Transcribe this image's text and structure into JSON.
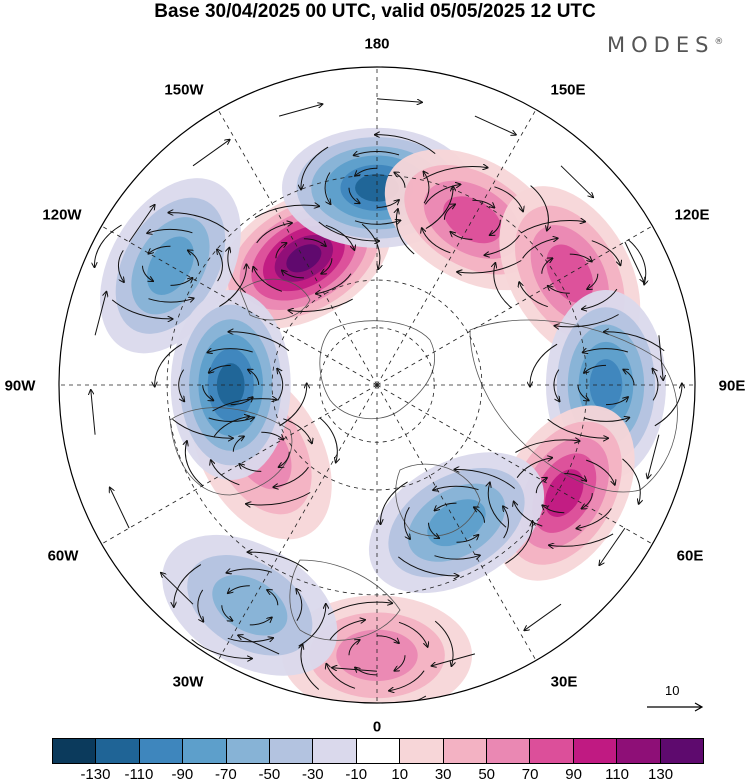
{
  "title": "Base 30/04/2025 00 UTC, valid 05/05/2025 12 UTC",
  "brand": "MODES",
  "brand_mark": "®",
  "longitude_labels": {
    "top": "180",
    "top_right": "150E",
    "right_upper": "120E",
    "right": "90E",
    "right_lower": "60E",
    "bottom_right": "30E",
    "bottom": "0",
    "bottom_left": "30W",
    "left_lower": "60W",
    "left": "90W",
    "left_upper": "120W",
    "top_left": "150W"
  },
  "colorbar": {
    "colors": [
      "#0b3a5c",
      "#1f6496",
      "#3e86bd",
      "#5d9fcb",
      "#87b3d6",
      "#b3c3e0",
      "#dad9ec",
      "#ffffff",
      "#f7d6d8",
      "#f3b2c3",
      "#ea88b3",
      "#dc4f9a",
      "#c01a82",
      "#8e0f77",
      "#5e0a6e"
    ],
    "ticks": [
      "-130",
      "-110",
      "-90",
      "-70",
      "-50",
      "-30",
      "-10",
      "10",
      "30",
      "50",
      "70",
      "90",
      "110",
      "130"
    ]
  },
  "reference_vector": "10",
  "anomaly_centers": [
    {
      "lon": -150,
      "colat": 0.46,
      "value": 120
    },
    {
      "lon": 180,
      "colat": 0.62,
      "value": -100
    },
    {
      "lon": 150,
      "colat": 0.6,
      "value": 60
    },
    {
      "lon": 120,
      "colat": 0.7,
      "value": 75
    },
    {
      "lon": -120,
      "colat": 0.75,
      "value": -60
    },
    {
      "lon": 90,
      "colat": 0.72,
      "value": -85
    },
    {
      "lon": 60,
      "colat": 0.68,
      "value": 95
    },
    {
      "lon": 30,
      "colat": 0.5,
      "value": -75
    },
    {
      "lon": 0,
      "colat": 0.85,
      "value": 40
    },
    {
      "lon": -30,
      "colat": 0.8,
      "value": -55
    },
    {
      "lon": -60,
      "colat": 0.42,
      "value": 45
    },
    {
      "lon": -90,
      "colat": 0.46,
      "value": -110
    }
  ]
}
